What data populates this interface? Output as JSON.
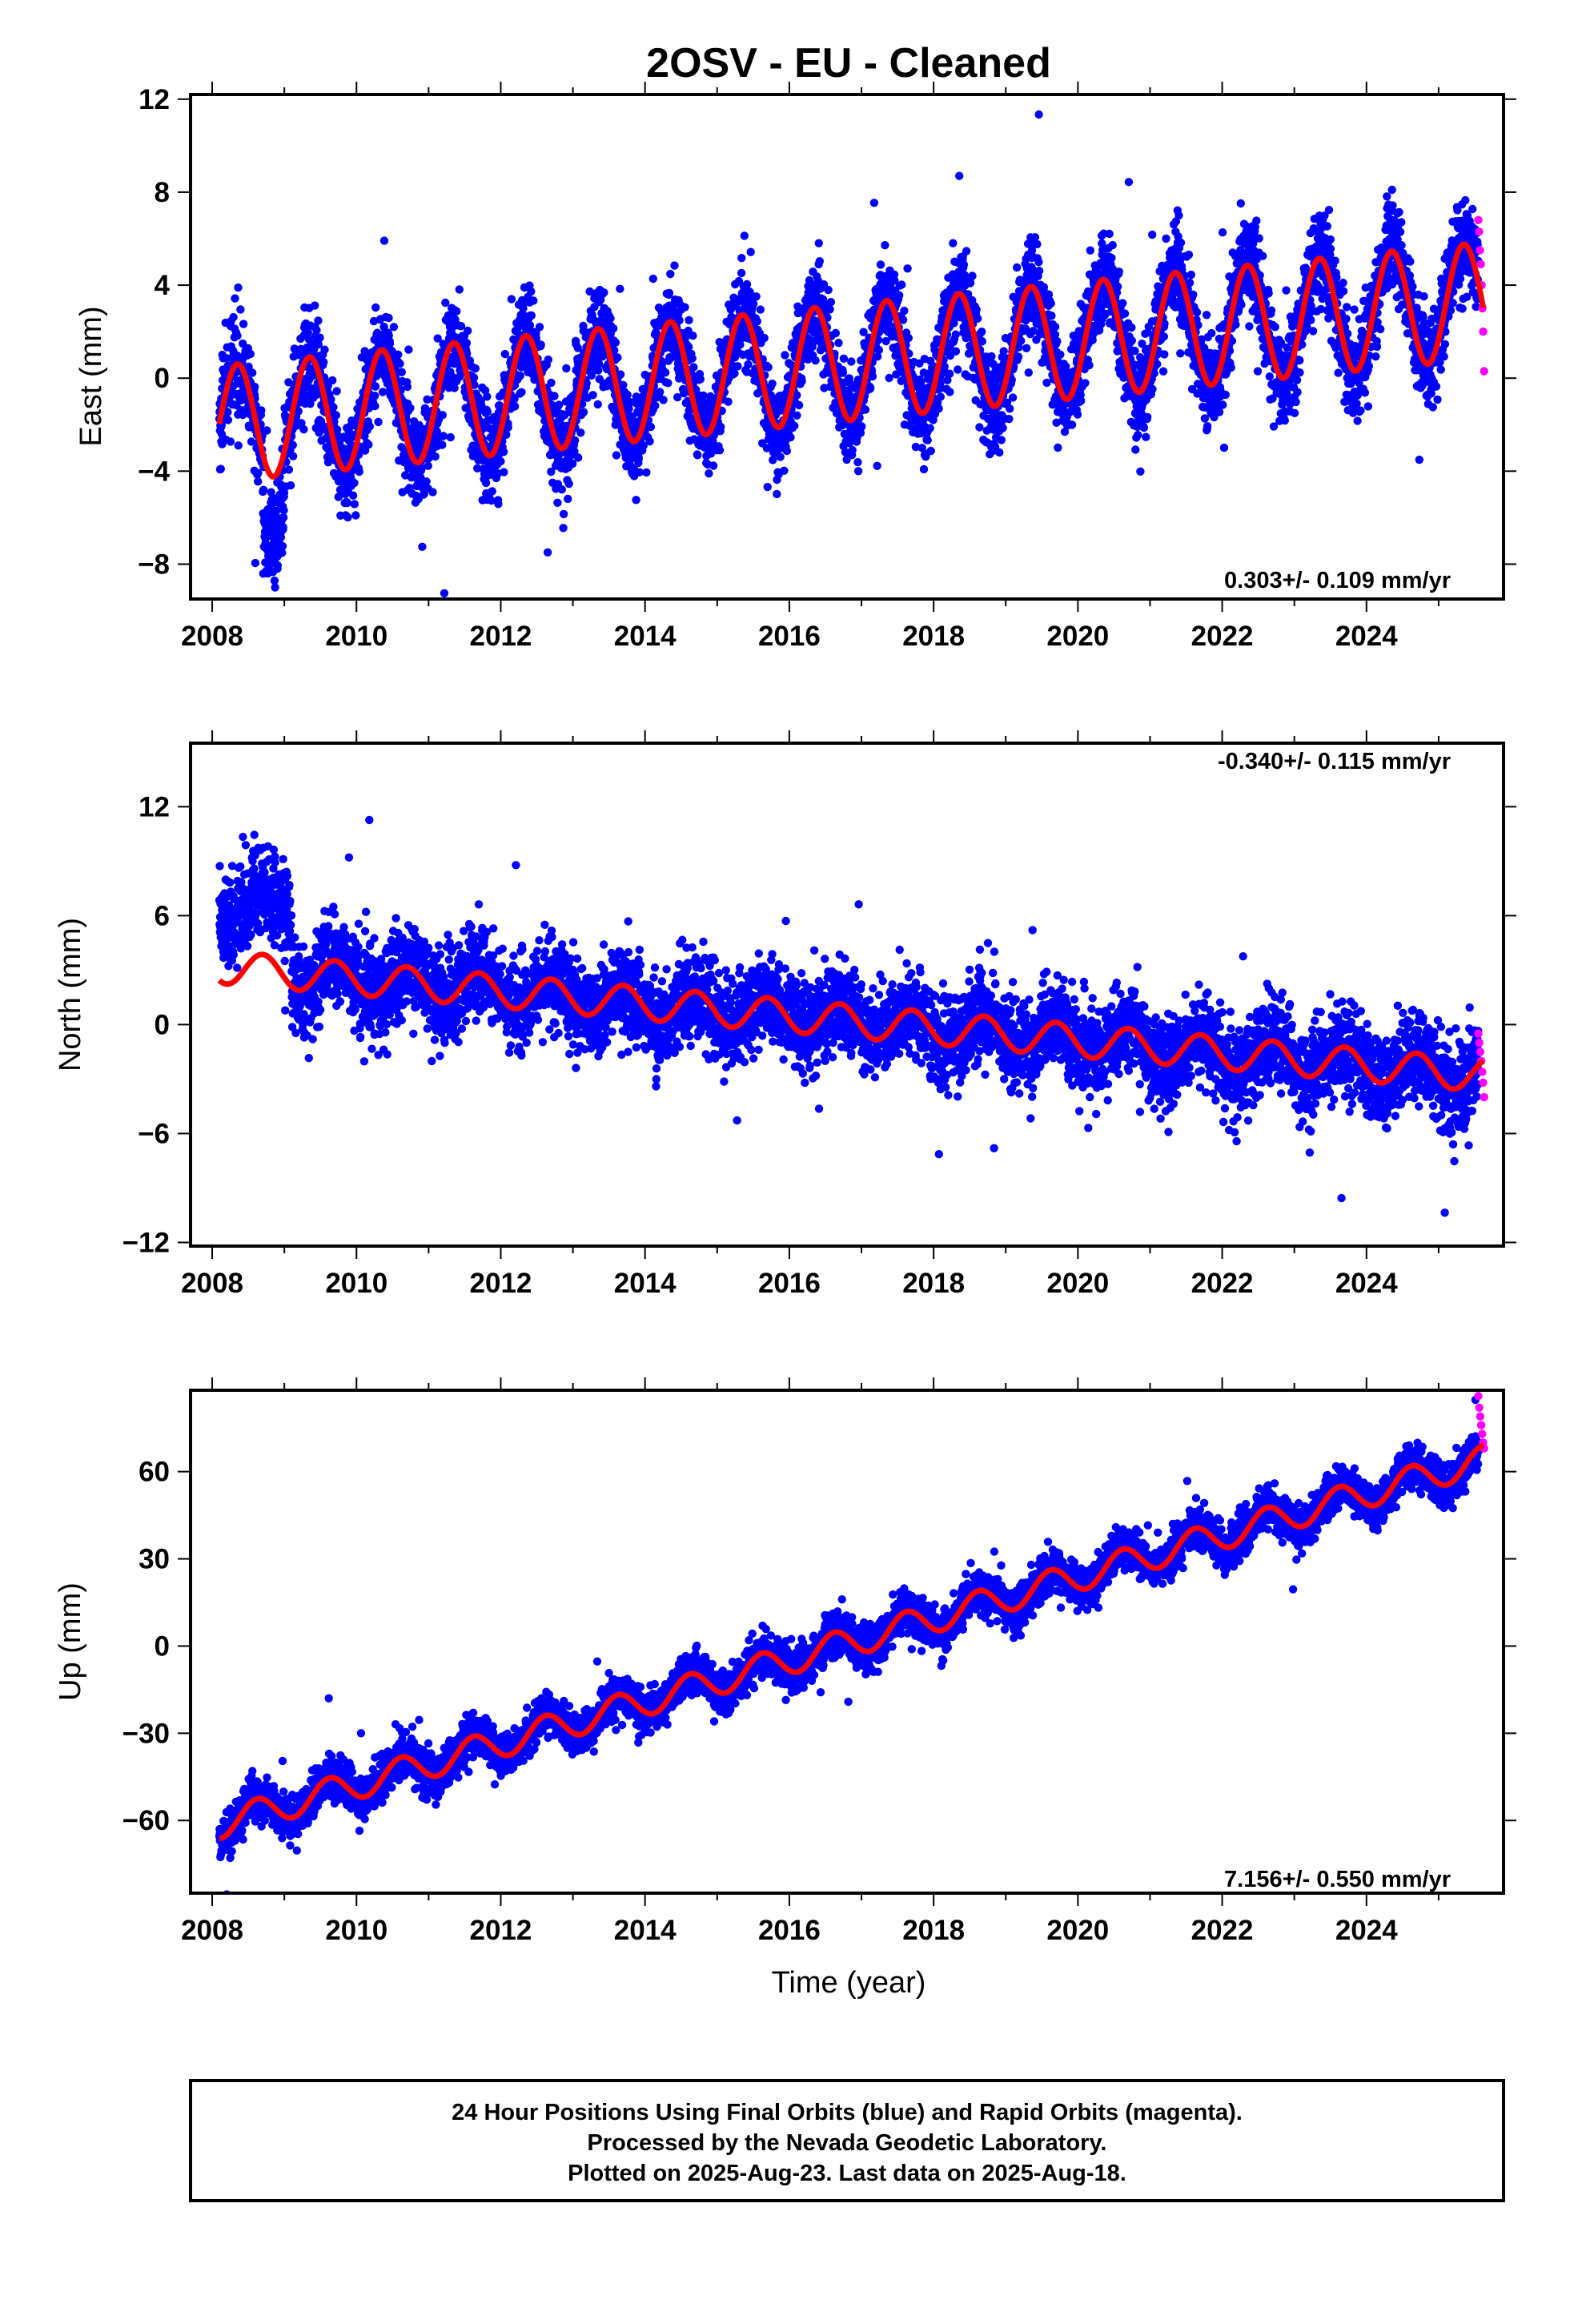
{
  "title": "2OSV  - EU - Cleaned",
  "xlabel": "Time (year)",
  "colors": {
    "final": "#0000ff",
    "rapid": "#ff00ff",
    "model": "#ff0000"
  },
  "chart_data": [
    {
      "type": "scatter",
      "component": "east",
      "ylabel": "East (mm)",
      "rate": "0.303+/- 0.109 mm/yr",
      "rate_position": "bottom-right",
      "xlim": [
        2007.7,
        2025.9
      ],
      "ylim": [
        -9.5,
        12.2
      ],
      "x_ticks": [
        2008,
        2010,
        2012,
        2014,
        2016,
        2018,
        2020,
        2022,
        2024
      ],
      "y_ticks": [
        -8,
        -4,
        0,
        4,
        8,
        12
      ],
      "grid": false,
      "series": [
        {
          "marker": "dot",
          "color": "#0000ff",
          "x_range": [
            2008.1,
            2025.55
          ],
          "trend": {
            "at_2008": -2.0,
            "rate": 0.303
          },
          "amplitude": 2.5,
          "phase_peak": 0.35,
          "noise": 1.0
        },
        {
          "marker": "dot",
          "color": "#ff00ff",
          "x_range": [
            2025.55,
            2025.63
          ],
          "values_mm": [
            6.8,
            6.3,
            5.5,
            4.9,
            4.0,
            3.0,
            2.0,
            0.3
          ]
        },
        {
          "marker": "line",
          "color": "#ff0000",
          "x_range": [
            2008.1,
            2025.62
          ]
        }
      ]
    },
    {
      "type": "scatter",
      "component": "north",
      "ylabel": "North (mm)",
      "rate": "-0.340+/- 0.115 mm/yr",
      "rate_position": "top-right",
      "xlim": [
        2007.7,
        2025.9
      ],
      "ylim": [
        -12.2,
        15.5
      ],
      "x_ticks": [
        2008,
        2010,
        2012,
        2014,
        2016,
        2018,
        2020,
        2022,
        2024
      ],
      "y_ticks": [
        -12,
        -6,
        0,
        6,
        12
      ],
      "grid": false,
      "series": [
        {
          "marker": "dot",
          "color": "#0000ff",
          "x_range": [
            2008.1,
            2025.55
          ],
          "trend": {
            "at_2008": 3.2,
            "rate": -0.34
          },
          "amplitude": 0.9,
          "phase_peak": 0.7,
          "noise": 1.2
        },
        {
          "marker": "dot",
          "color": "#ff00ff",
          "x_range": [
            2025.55,
            2025.63
          ],
          "values_mm": [
            -0.5,
            -1.0,
            -1.5,
            -2.0,
            -2.6,
            -3.2,
            -4.0
          ]
        },
        {
          "marker": "line",
          "color": "#ff0000",
          "x_range": [
            2008.1,
            2025.62
          ]
        }
      ]
    },
    {
      "type": "scatter",
      "component": "up",
      "ylabel": "Up (mm)",
      "rate": "7.156+/- 0.550 mm/yr",
      "rate_position": "bottom-right",
      "xlim": [
        2007.7,
        2025.9
      ],
      "ylim": [
        -85,
        88
      ],
      "x_ticks": [
        2008,
        2010,
        2012,
        2014,
        2016,
        2018,
        2020,
        2022,
        2024
      ],
      "y_ticks": [
        -60,
        -30,
        0,
        30,
        60
      ],
      "grid": false,
      "series": [
        {
          "marker": "dot",
          "color": "#0000ff",
          "x_range": [
            2008.1,
            2025.55
          ],
          "trend": {
            "at_2008": -62.0,
            "rate": 7.156
          },
          "amplitude": 5.0,
          "phase_peak": 0.62,
          "noise": 3.5
        },
        {
          "marker": "dot",
          "color": "#ff00ff",
          "x_range": [
            2025.55,
            2025.63
          ],
          "values_mm": [
            86,
            82,
            79,
            76,
            73,
            70,
            68
          ]
        },
        {
          "marker": "line",
          "color": "#ff0000",
          "x_range": [
            2008.1,
            2025.62
          ]
        }
      ]
    }
  ],
  "caption": {
    "line1": "24 Hour Positions Using Final Orbits (blue) and Rapid Orbits (magenta).",
    "line2": "Processed by the Nevada Geodetic Laboratory.",
    "line3": "Plotted on 2025-Aug-23. Last data on 2025-Aug-18."
  }
}
